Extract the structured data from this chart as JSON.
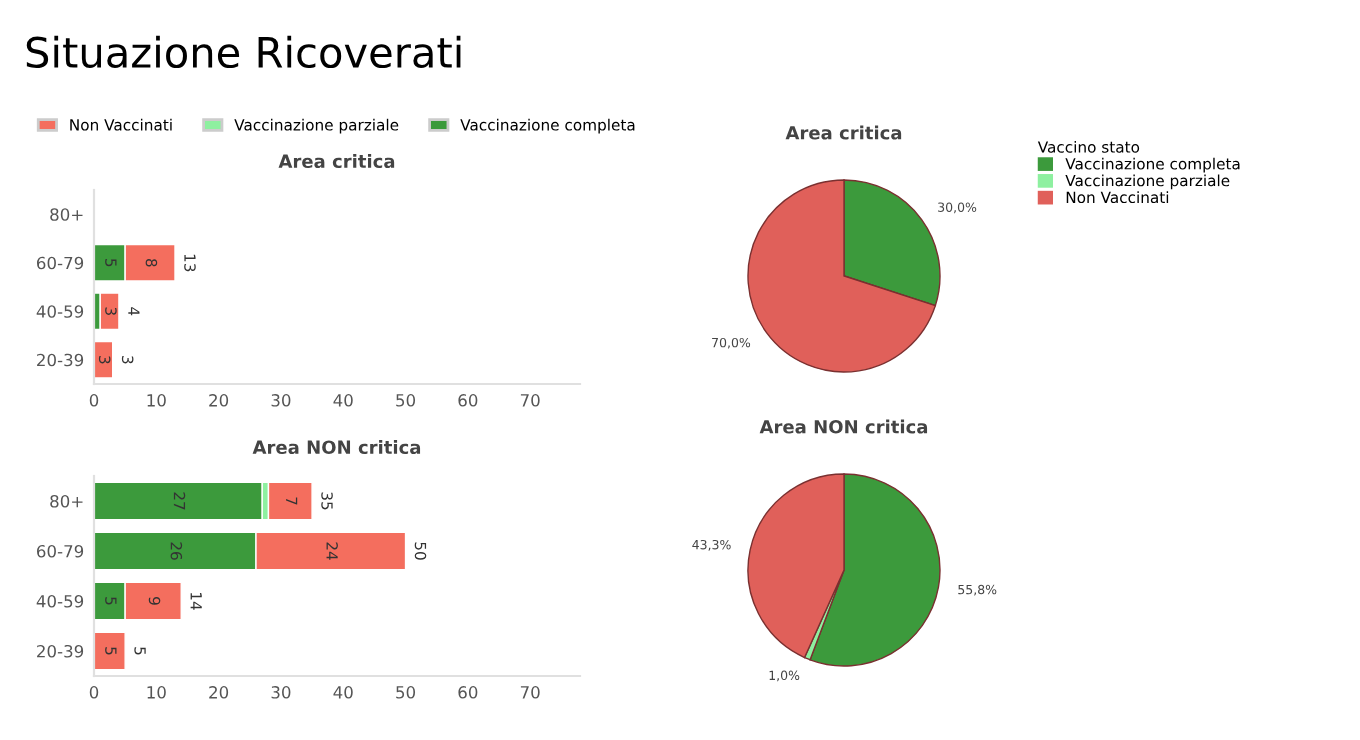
{
  "chart_data": [
    {
      "type": "other",
      "title": "Situazione Ricoverati"
    },
    {
      "type": "bar",
      "orientation": "horizontal",
      "stacked": true,
      "title": "Area critica",
      "categories": [
        "80+",
        "60-79",
        "40-59",
        "20-39"
      ],
      "xlim": [
        0,
        78
      ],
      "xticks": [
        0,
        10,
        20,
        30,
        40,
        50,
        60,
        70
      ],
      "legend": "top",
      "grid": false,
      "series": [
        {
          "name": "Vaccinazione completa",
          "color": "#3c9a3c",
          "values": [
            null,
            5,
            1,
            null
          ],
          "value_labels": [
            null,
            "5",
            null,
            null
          ]
        },
        {
          "name": "Vaccinazione parziale",
          "color": "#8ef0a0",
          "values": [
            null,
            null,
            null,
            null
          ],
          "value_labels": [
            null,
            null,
            null,
            null
          ]
        },
        {
          "name": "Non Vaccinati",
          "color": "#f46e5e",
          "values": [
            null,
            8,
            3,
            3
          ],
          "value_labels": [
            null,
            "8",
            "3",
            "3"
          ]
        }
      ],
      "totals": [
        null,
        "13",
        "4",
        "3"
      ]
    },
    {
      "type": "pie",
      "title": "Area critica",
      "categories": [
        "Vaccinazione completa",
        "Vaccinazione parziale",
        "Non Vaccinati"
      ],
      "colors": [
        "#3c9a3c",
        "#8ef0a0",
        "#e0605a"
      ],
      "values": [
        30.0,
        0,
        70.0
      ],
      "value_labels": [
        "30,0%",
        null,
        "70,0%"
      ],
      "legend": "right",
      "legend_title": "Vaccino stato"
    },
    {
      "type": "bar",
      "orientation": "horizontal",
      "stacked": true,
      "title": "Area NON critica",
      "categories": [
        "80+",
        "60-79",
        "40-59",
        "20-39"
      ],
      "xlim": [
        0,
        78
      ],
      "xticks": [
        0,
        10,
        20,
        30,
        40,
        50,
        60,
        70
      ],
      "grid": false,
      "series": [
        {
          "color": "#3c9a3c",
          "values": [
            27,
            26,
            5,
            null
          ],
          "value_labels": [
            "27",
            "26",
            "5",
            null
          ]
        },
        {
          "color": "#8ef0a0",
          "values": [
            1,
            null,
            null,
            null
          ],
          "value_labels": [
            null,
            null,
            null,
            null
          ]
        },
        {
          "color": "#f46e5e",
          "values": [
            7,
            24,
            9,
            5
          ],
          "value_labels": [
            "7",
            "24",
            "9",
            "5"
          ]
        }
      ],
      "totals": [
        "35",
        "50",
        "14",
        "5"
      ]
    },
    {
      "type": "pie",
      "title": "Area NON critica",
      "categories": [
        null,
        null,
        null
      ],
      "colors": [
        "#3c9a3c",
        "#8ef0a0",
        "#e0605a"
      ],
      "values": [
        55.8,
        1.0,
        43.3
      ],
      "value_labels": [
        "55,8%",
        "1,0%",
        "43,3%"
      ]
    }
  ]
}
